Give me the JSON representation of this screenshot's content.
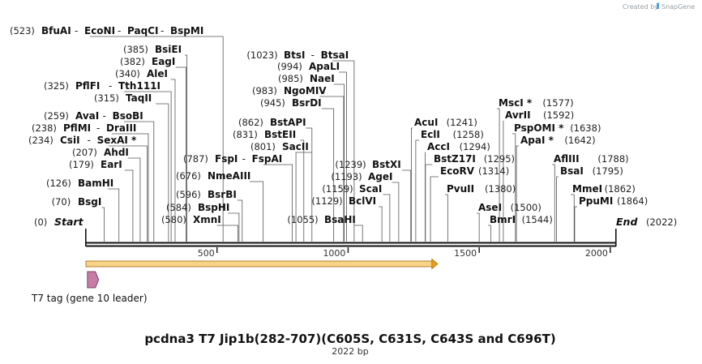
{
  "brand": {
    "created_by": "Created by",
    "name": "SnapGene"
  },
  "map": {
    "total_length": 2022,
    "title": "pcdna3 T7 Jip1b(282-707)(C605S, C631S, C643S and C696T)",
    "length_label": "2022 bp",
    "start_label": "Start",
    "start_pos": "(0)",
    "end_label": "End",
    "end_pos": "(2022)",
    "ticks": [
      {
        "value": 500,
        "label": "500"
      },
      {
        "value": 1000,
        "label": "1000"
      },
      {
        "value": 1500,
        "label": "1500"
      },
      {
        "value": 2000,
        "label": "2000"
      }
    ],
    "orf": {
      "start": 1,
      "end": 1332
    },
    "feature": {
      "name": "T7 tag (gene 10 leader)",
      "start": 1,
      "end": 33
    }
  },
  "sites": [
    {
      "pos": 70,
      "pos_label": "(70)",
      "names": [
        "BsgI"
      ]
    },
    {
      "pos": 126,
      "pos_label": "(126)",
      "names": [
        "BamHI"
      ]
    },
    {
      "pos": 179,
      "pos_label": "(179)",
      "names": [
        "EarI"
      ]
    },
    {
      "pos": 207,
      "pos_label": "(207)",
      "names": [
        "AhdI"
      ]
    },
    {
      "pos": 234,
      "pos_label": "(234)",
      "names": [
        "CsiI",
        "SexAI *"
      ]
    },
    {
      "pos": 238,
      "pos_label": "(238)",
      "names": [
        "PflMI",
        "DraIII"
      ]
    },
    {
      "pos": 259,
      "pos_label": "(259)",
      "names": [
        "AvaI",
        "BsoBI"
      ]
    },
    {
      "pos": 315,
      "pos_label": "(315)",
      "names": [
        "TaqII"
      ]
    },
    {
      "pos": 325,
      "pos_label": "(325)",
      "names": [
        "PflFI",
        "Tth111I"
      ]
    },
    {
      "pos": 340,
      "pos_label": "(340)",
      "names": [
        "AleI"
      ]
    },
    {
      "pos": 382,
      "pos_label": "(382)",
      "names": [
        "EagI"
      ]
    },
    {
      "pos": 385,
      "pos_label": "(385)",
      "names": [
        "BsiEI"
      ]
    },
    {
      "pos": 523,
      "pos_label": "(523)",
      "names": [
        "BfuAI",
        "EcoNI",
        "PaqCI",
        "BspMI"
      ]
    },
    {
      "pos": 580,
      "pos_label": "(580)",
      "names": [
        "XmnI"
      ]
    },
    {
      "pos": 584,
      "pos_label": "(584)",
      "names": [
        "BspHI"
      ]
    },
    {
      "pos": 596,
      "pos_label": "(596)",
      "names": [
        "BsrBI"
      ]
    },
    {
      "pos": 676,
      "pos_label": "(676)",
      "names": [
        "NmeAIII"
      ]
    },
    {
      "pos": 787,
      "pos_label": "(787)",
      "names": [
        "FspI",
        "FspAI"
      ]
    },
    {
      "pos": 801,
      "pos_label": "(801)",
      "names": [
        "SacII"
      ]
    },
    {
      "pos": 831,
      "pos_label": "(831)",
      "names": [
        "BstEII"
      ]
    },
    {
      "pos": 862,
      "pos_label": "(862)",
      "names": [
        "BstAPI"
      ]
    },
    {
      "pos": 945,
      "pos_label": "(945)",
      "names": [
        "BsrDI"
      ]
    },
    {
      "pos": 983,
      "pos_label": "(983)",
      "names": [
        "NgoMIV"
      ]
    },
    {
      "pos": 985,
      "pos_label": "(985)",
      "names": [
        "NaeI"
      ]
    },
    {
      "pos": 994,
      "pos_label": "(994)",
      "names": [
        "ApaLI"
      ]
    },
    {
      "pos": 1023,
      "pos_label": "(1023)",
      "names": [
        "BtsI",
        "BtsaI"
      ]
    },
    {
      "pos": 1055,
      "pos_label": "(1055)",
      "names": [
        "BsaHI"
      ]
    },
    {
      "pos": 1129,
      "pos_label": "(1129)",
      "names": [
        "BclVI"
      ]
    },
    {
      "pos": 1159,
      "pos_label": "(1159)",
      "names": [
        "ScaI"
      ]
    },
    {
      "pos": 1193,
      "pos_label": "(1193)",
      "names": [
        "AgeI"
      ]
    },
    {
      "pos": 1239,
      "pos_label": "(1239)",
      "names": [
        "BstXI"
      ]
    },
    {
      "pos": 1241,
      "pos_label": "(1241)",
      "names": [
        "AcuI"
      ]
    },
    {
      "pos": 1258,
      "pos_label": "(1258)",
      "names": [
        "EclI"
      ]
    },
    {
      "pos": 1294,
      "pos_label": "(1294)",
      "names": [
        "AccI"
      ]
    },
    {
      "pos": 1295,
      "pos_label": "(1295)",
      "names": [
        "BstZ17I"
      ]
    },
    {
      "pos": 1314,
      "pos_label": "(1314)",
      "names": [
        "EcoRV"
      ]
    },
    {
      "pos": 1380,
      "pos_label": "(1380)",
      "names": [
        "PvuII"
      ]
    },
    {
      "pos": 1500,
      "pos_label": "(1500)",
      "names": [
        "AseI"
      ]
    },
    {
      "pos": 1544,
      "pos_label": "(1544)",
      "names": [
        "BmrI"
      ]
    },
    {
      "pos": 1577,
      "pos_label": "(1577)",
      "names": [
        "MscI *"
      ]
    },
    {
      "pos": 1592,
      "pos_label": "(1592)",
      "names": [
        "AvrII"
      ]
    },
    {
      "pos": 1638,
      "pos_label": "(1638)",
      "names": [
        "PspOMI *"
      ]
    },
    {
      "pos": 1642,
      "pos_label": "(1642)",
      "names": [
        "ApaI *"
      ]
    },
    {
      "pos": 1788,
      "pos_label": "(1788)",
      "names": [
        "AflIII"
      ]
    },
    {
      "pos": 1795,
      "pos_label": "(1795)",
      "names": [
        "BsaI"
      ]
    },
    {
      "pos": 1862,
      "pos_label": "(1862)",
      "names": [
        "MmeI"
      ]
    },
    {
      "pos": 1864,
      "pos_label": "(1864)",
      "names": [
        "PpuMI"
      ]
    }
  ]
}
